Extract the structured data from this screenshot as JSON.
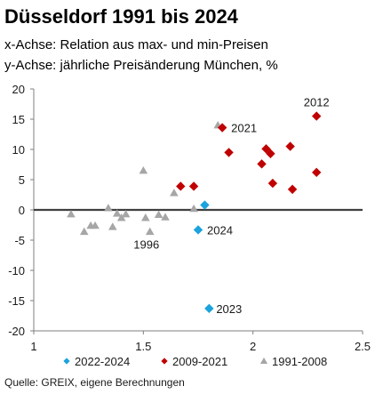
{
  "chart_data": {
    "type": "scatter",
    "title": "Düsseldorf 1991 bis 2024",
    "subtitle_lines": [
      "x-Achse: Relation aus max- und min-Preisen",
      "y-Achse: jährliche Preisänderung München, %"
    ],
    "xlim": [
      1,
      2.5
    ],
    "ylim": [
      -20,
      20
    ],
    "x_ticks": [
      "1",
      "1.5",
      "2",
      "2.5"
    ],
    "y_ticks": [
      "20",
      "15",
      "10",
      "5",
      "0",
      "-5",
      "-10",
      "-15",
      "-20"
    ],
    "grid": false,
    "zero_line": true,
    "legend_position": "bottom",
    "source": "Quelle: GREIX, eigene Berechnungen",
    "series": [
      {
        "name": "2022-2024",
        "marker": "diamond",
        "color": "#1aa3dd",
        "points": [
          {
            "x": 1.78,
            "y": 0.8
          },
          {
            "x": 1.75,
            "y": -3.3,
            "label": "2024"
          },
          {
            "x": 1.8,
            "y": -16.3,
            "label": "2023"
          }
        ]
      },
      {
        "name": "2009-2021",
        "marker": "diamond",
        "color": "#c00000",
        "points": [
          {
            "x": 1.67,
            "y": 3.9
          },
          {
            "x": 1.73,
            "y": 3.9
          },
          {
            "x": 1.86,
            "y": 13.6,
            "label": "2021"
          },
          {
            "x": 1.89,
            "y": 9.5
          },
          {
            "x": 2.04,
            "y": 7.6
          },
          {
            "x": 2.06,
            "y": 10.1
          },
          {
            "x": 2.08,
            "y": 9.3
          },
          {
            "x": 2.09,
            "y": 4.4
          },
          {
            "x": 2.17,
            "y": 10.5
          },
          {
            "x": 2.18,
            "y": 3.4
          },
          {
            "x": 2.29,
            "y": 15.5,
            "label": "2012"
          },
          {
            "x": 2.29,
            "y": 6.2
          }
        ]
      },
      {
        "name": "1991-2008",
        "marker": "triangle",
        "color": "#a6a6a6",
        "points": [
          {
            "x": 1.17,
            "y": -0.7
          },
          {
            "x": 1.23,
            "y": -3.6
          },
          {
            "x": 1.26,
            "y": -2.6
          },
          {
            "x": 1.28,
            "y": -2.6
          },
          {
            "x": 1.34,
            "y": 0.3
          },
          {
            "x": 1.36,
            "y": -2.8
          },
          {
            "x": 1.38,
            "y": -0.6
          },
          {
            "x": 1.4,
            "y": -1.3
          },
          {
            "x": 1.42,
            "y": -0.7
          },
          {
            "x": 1.5,
            "y": 6.5
          },
          {
            "x": 1.51,
            "y": -1.3
          },
          {
            "x": 1.53,
            "y": -3.6,
            "label": "1996"
          },
          {
            "x": 1.57,
            "y": -0.8
          },
          {
            "x": 1.6,
            "y": -1.2
          },
          {
            "x": 1.64,
            "y": 2.8
          },
          {
            "x": 1.73,
            "y": 0.2
          },
          {
            "x": 1.84,
            "y": 14.0
          }
        ]
      }
    ]
  }
}
